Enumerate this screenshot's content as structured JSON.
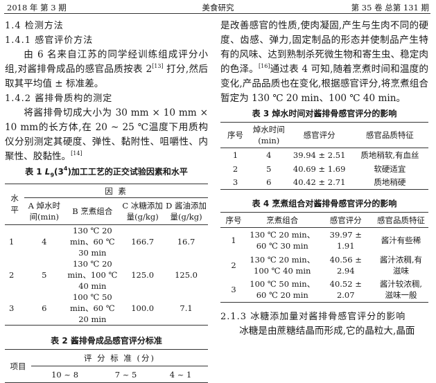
{
  "header": {
    "left": "2018 年   第 3 期",
    "center": "美食研究",
    "right": "第 35 卷   总第 131 期"
  },
  "left": {
    "s14": "1.4   检测方法",
    "s141": "1.4.1   感官评价方法",
    "p1a": "由 6 名来自江苏的同学经训练组成评分小组,对酱排骨成品的感官品质按表 2",
    "p1ref": "[13]",
    "p1b": " 打分,然后取其平均值 ± 标准差。",
    "s142": "1.4.2   酱排骨质构的测定",
    "p2a": "将酱排骨切成大小为 30 mm × 10 mm × 10 mm的长方体,在 20 ~ 25 ℃温度下用质构仪分别测定其硬度、弹性、黏附性、咀嚼性、内聚性、胶黏性。",
    "p2ref": "[14]"
  },
  "table1": {
    "caption_prefix": "表 1  ",
    "caption_L": "L",
    "caption_sub": "9",
    "caption_mid": "(3",
    "caption_sup": "4",
    "caption_suffix": ")加工工艺的正交试验因素和水平",
    "level_header": "水平",
    "factor_header": "因        素",
    "columns": [
      "A 焯水时间(min)",
      "B 烹煮组合",
      "C 冰糖添加量(g/kg)",
      "D 酱油添加量(g/kg)"
    ],
    "rows": [
      [
        "1",
        "4",
        "130 ℃ 20 min、60 ℃ 30 min",
        "166.7",
        "16.7"
      ],
      [
        "2",
        "5",
        "130 ℃ 20 min、100 ℃ 40 min",
        "125.0",
        "125.0"
      ],
      [
        "3",
        "6",
        "100 ℃ 50 min、60 ℃ 20 min",
        "100.0",
        "7.1"
      ]
    ]
  },
  "table2": {
    "caption": "表 2   酱排骨成品感官评分标准",
    "item_header": "项目",
    "group_header": "评  分  标  准 (分)",
    "columns": [
      "10 ~ 8",
      "7 ~ 5",
      "4 ~ 1"
    ]
  },
  "right": {
    "p1a": "是改善感官的性质,使肉凝固,产生与生肉不同的硬度、齿感、弹力,固定制品的形态并使制品产生特有的风味、达到熟制杀死微生物和寄生虫、稳定肉的色泽。",
    "p1ref": "[16]",
    "p1b": "通过表 4 可知,随着烹煮时间和温度的变化,产品品质也在变化,根据感官评分,将烹煮组合暂定为 130 ℃ 20 min、100 ℃ 40 min。",
    "s213": "2.1.3   冰糖添加量对酱排骨感官评分的影响",
    "p2": "冰糖是由蔗糖结晶而形成,它的晶粒大,晶面"
  },
  "table3": {
    "caption": "表 3   焯水时间对酱排骨感官评分的影响",
    "columns": [
      "序号",
      "焯水时间(min)",
      "感官评分",
      "感官品质特征"
    ],
    "rows": [
      [
        "1",
        "4",
        "39.94 ± 2.51",
        "质地稍软,有血丝"
      ],
      [
        "2",
        "5",
        "40.69 ± 1.69",
        "软硬适宜"
      ],
      [
        "3",
        "6",
        "40.42 ± 2.71",
        "质地稍硬"
      ]
    ]
  },
  "table4": {
    "caption": "表 4   烹煮组合对酱排骨感官评分的影响",
    "columns": [
      "序号",
      "烹煮组合",
      "感官评分",
      "感官品质特征"
    ],
    "rows": [
      [
        "1",
        "130 ℃ 20 min、60 ℃ 30 min",
        "39.97 ± 1.91",
        "酱汁有些稀"
      ],
      [
        "2",
        "130 ℃ 20 min、100 ℃ 40 min",
        "40.56 ± 2.94",
        "酱汁浓稠,有滋味"
      ],
      [
        "3",
        "100 ℃ 50 min、60 ℃ 20 min",
        "40.52 ± 2.07",
        "酱汁较浓稠,滋味一般"
      ]
    ]
  }
}
